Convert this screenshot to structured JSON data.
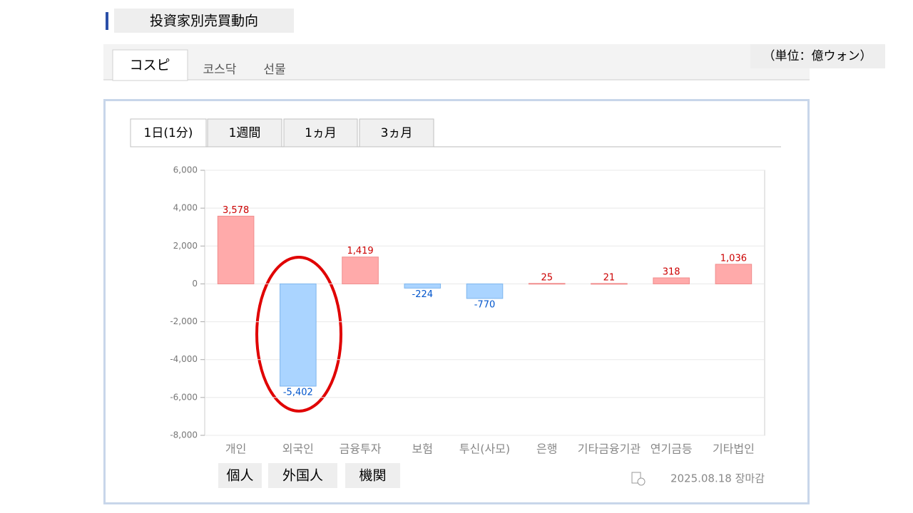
{
  "header": {
    "title": "投資家別売買動向"
  },
  "market_tabs": [
    "コスピ",
    "코스닥",
    "선물"
  ],
  "unit": "（単位：億ウォン）",
  "period_tabs": [
    "1日(1分)",
    "1週間",
    "1ヵ月",
    "3ヵ月"
  ],
  "chart_data": {
    "type": "bar",
    "categories": [
      "개인",
      "외국인",
      "금융투자",
      "보험",
      "투신(사모)",
      "은행",
      "기타금융기관",
      "연기금등",
      "기타법인"
    ],
    "values": [
      3578,
      -5402,
      1419,
      -224,
      -770,
      25,
      21,
      318,
      1036
    ],
    "value_labels": [
      "3,578",
      "-5,402",
      "1,419",
      "-224",
      "-770",
      "25",
      "21",
      "318",
      "1,036"
    ],
    "positive_color": "#ffaaaa",
    "negative_color": "#aad4ff",
    "ylim": [
      -8000,
      6000
    ],
    "yticks": [
      {
        "value": -8000,
        "label": "-8,000"
      },
      {
        "value": -6000,
        "label": "-6,000"
      },
      {
        "value": -4000,
        "label": "-4,000"
      },
      {
        "value": -2000,
        "label": "-2,000"
      },
      0,
      {
        "value": 2000,
        "label": "2,000"
      },
      {
        "value": 4000,
        "label": "4,000"
      },
      {
        "value": 6000,
        "label": "6,000"
      }
    ],
    "grid": true
  },
  "annotations": [
    "個人",
    "外国人",
    "機関"
  ],
  "footer": "2025.08.18 장마감"
}
